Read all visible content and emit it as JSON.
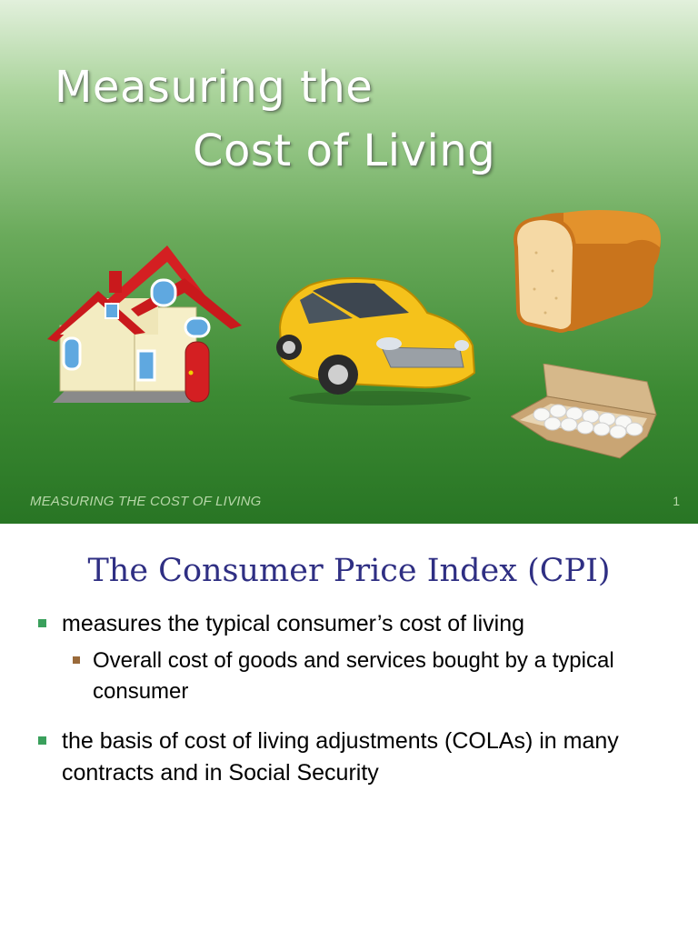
{
  "slide1": {
    "title_line1": "Measuring the",
    "title_line2": "Cost of Living",
    "footer": "MEASURING THE COST OF LIVING",
    "page_number": "1"
  },
  "slide2": {
    "heading": "The Consumer Price Index (CPI)",
    "bullets": [
      "measures the typical consumer’s cost of living",
      "the basis of cost of living adjustments (COLAs) in many contracts and in Social Security"
    ],
    "sub_bullets": [
      "Overall cost of goods and services bought by a typical consumer"
    ]
  },
  "colors": {
    "heading": "#2f2f83",
    "bullet_marker": "#3aa05c",
    "sub_bullet_marker": "#9a6a3a",
    "footer_text": "#b6d7a8"
  }
}
